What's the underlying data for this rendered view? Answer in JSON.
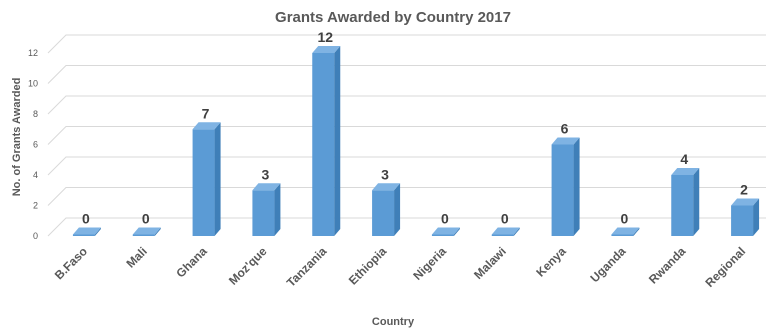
{
  "chart_data": {
    "type": "bar",
    "title": "Grants Awarded by Country 2017",
    "xlabel": "Country",
    "ylabel": "No. of Grants Awarded",
    "categories": [
      "B.Faso",
      "Mali",
      "Ghana",
      "Moz'que",
      "Tanzania",
      "Ethiopia",
      "Nigeria",
      "Malawi",
      "Kenya",
      "Uganda",
      "Rwanda",
      "Regional"
    ],
    "values": [
      0,
      0,
      7,
      3,
      12,
      3,
      0,
      0,
      6,
      0,
      4,
      2
    ],
    "ylim": [
      0,
      12
    ],
    "yticks": [
      0,
      2,
      4,
      6,
      8,
      10,
      12
    ],
    "grid": true,
    "legend": "none",
    "style": "3d-column",
    "colors": {
      "bar_front": "#5b9bd5",
      "bar_side": "#3f7fb8",
      "bar_top": "#7fb3e3",
      "grid": "#d9d9d9",
      "text": "#595959",
      "data_label": "#404040"
    }
  }
}
